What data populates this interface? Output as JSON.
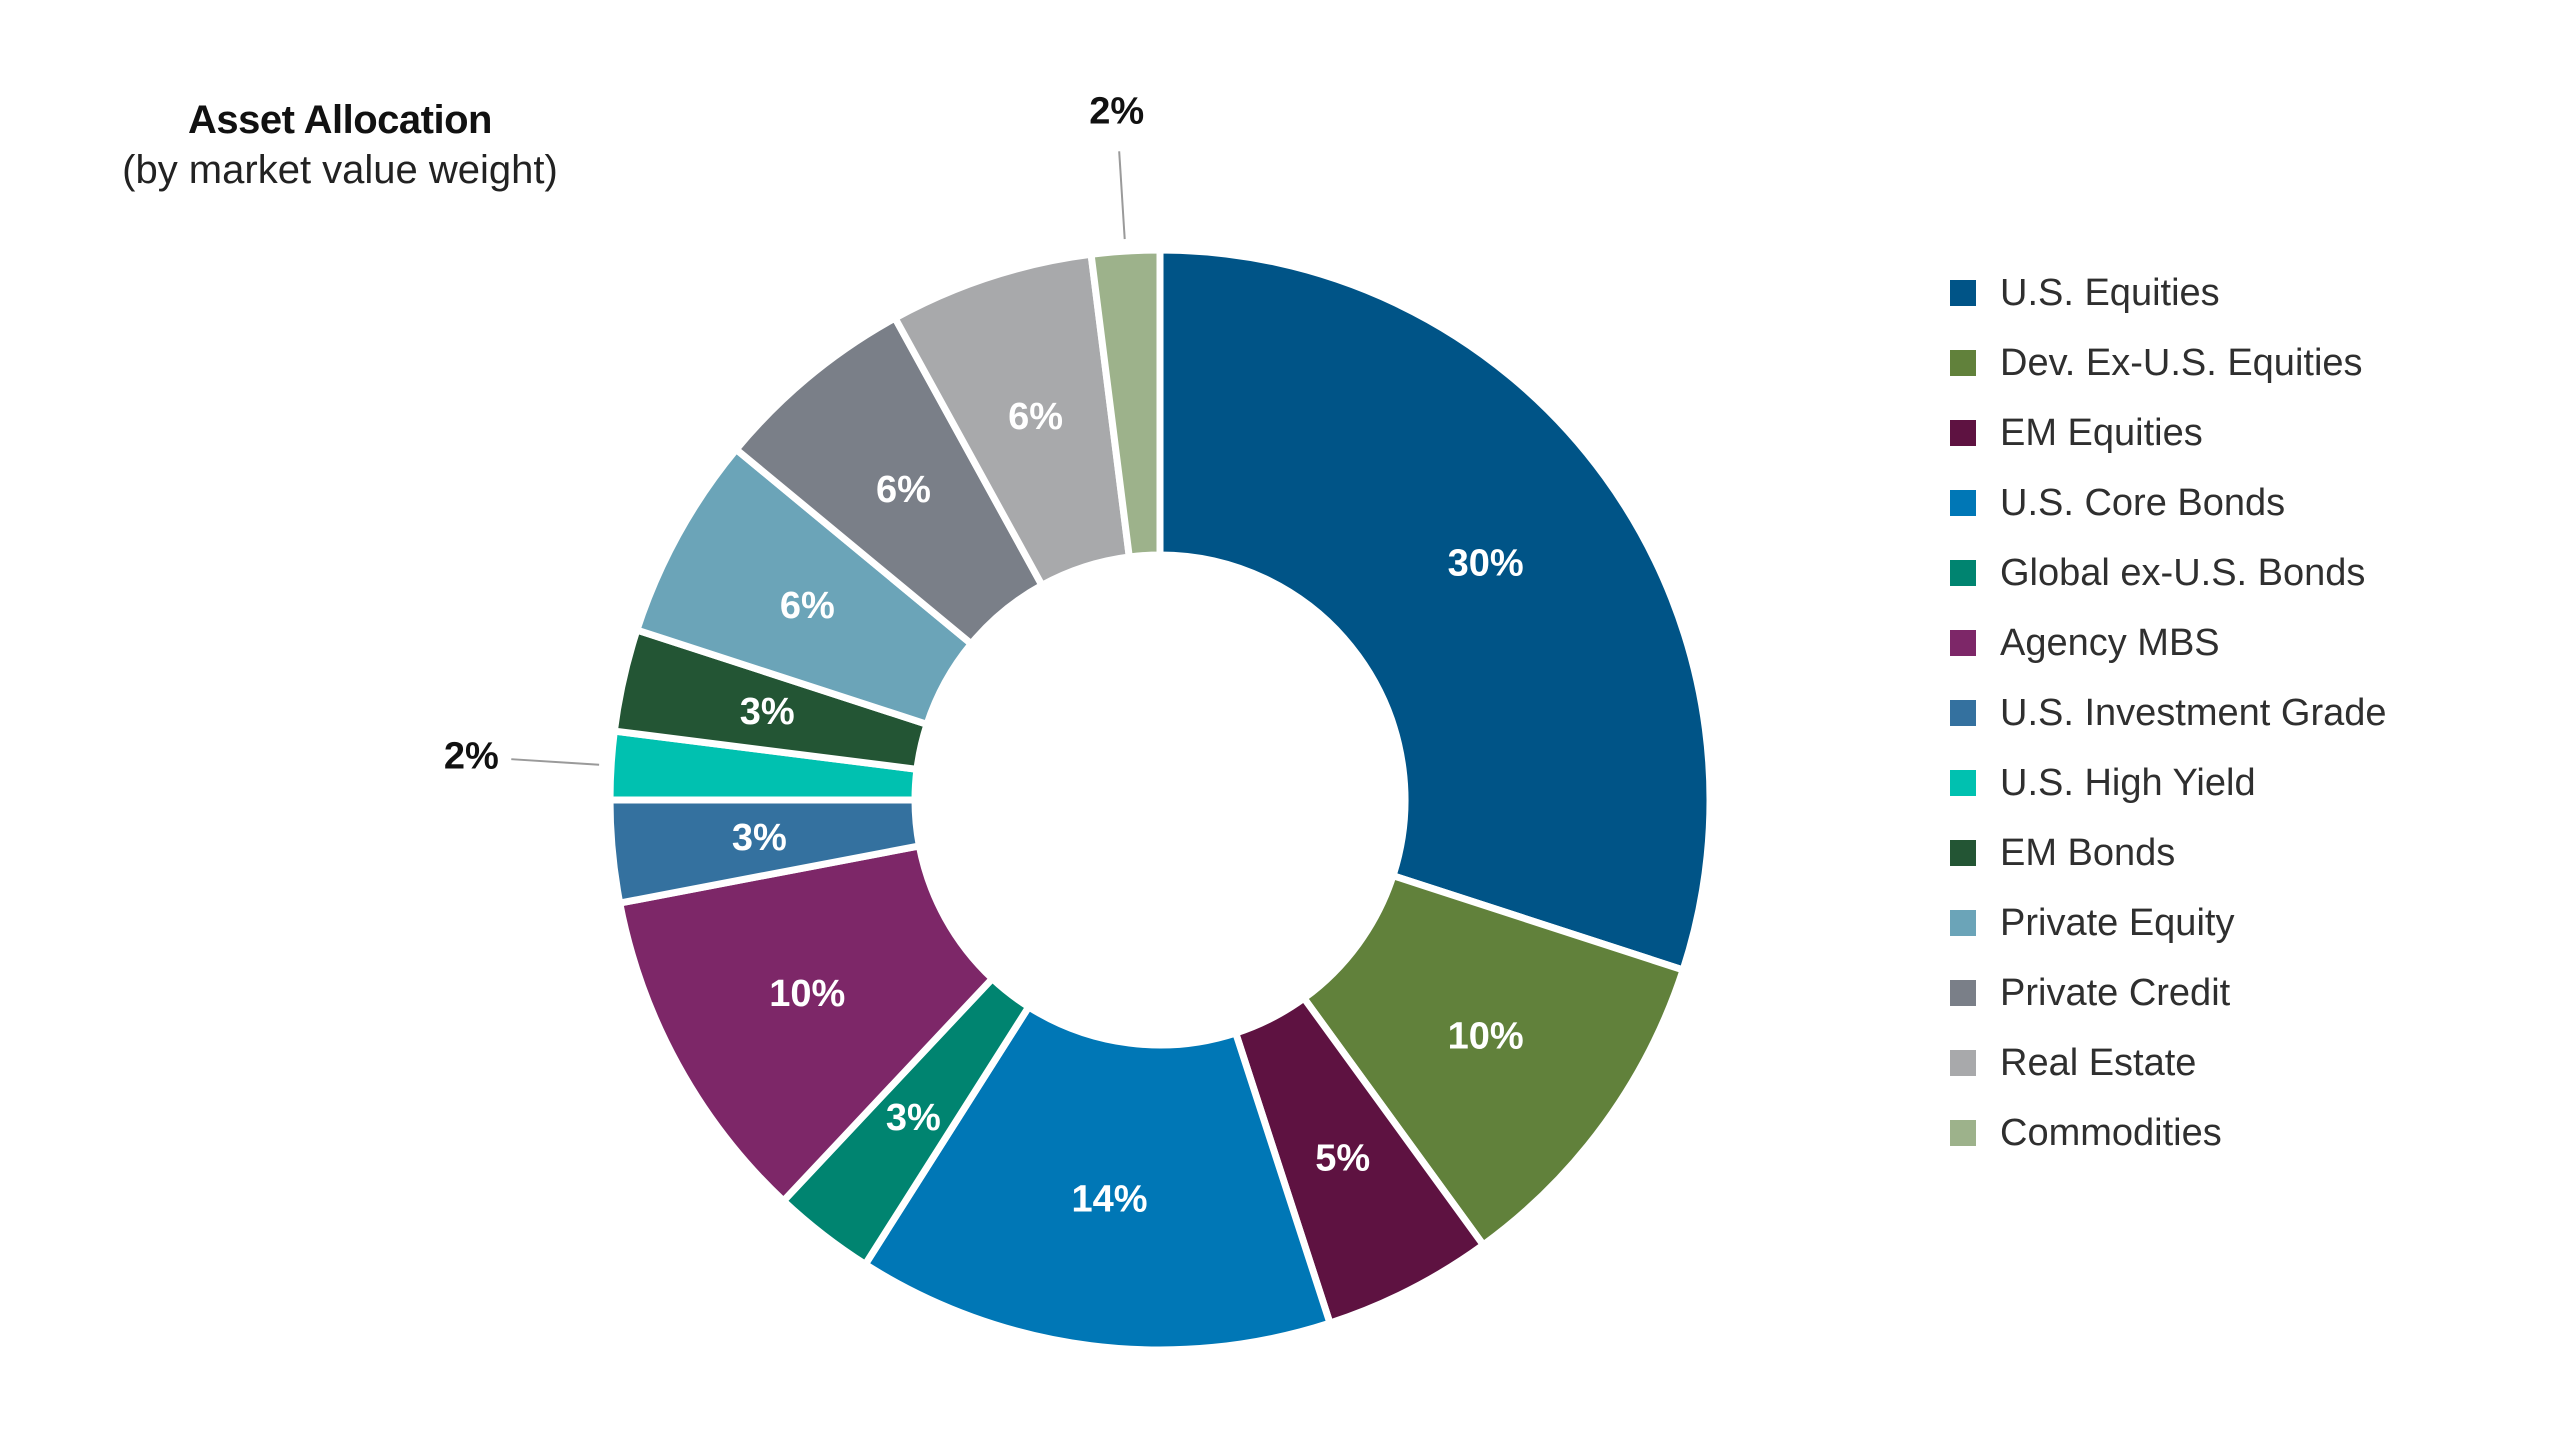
{
  "chart_data": {
    "type": "pie",
    "title": "Asset Allocation",
    "subtitle": "(by market value weight)",
    "categories": [
      "U.S. Equities",
      "Dev. Ex-U.S. Equities",
      "EM Equities",
      "U.S. Core Bonds",
      "Global ex-U.S. Bonds",
      "Agency MBS",
      "U.S. Investment Grade",
      "U.S. High Yield",
      "EM Bonds",
      "Private Equity",
      "Private Credit",
      "Real Estate",
      "Commodities"
    ],
    "values": [
      30,
      10,
      5,
      14,
      3,
      10,
      3,
      2,
      3,
      6,
      6,
      6,
      2
    ],
    "value_labels": [
      "30%",
      "10%",
      "5%",
      "14%",
      "3%",
      "10%",
      "3%",
      "2%",
      "3%",
      "6%",
      "6%",
      "6%",
      "2%"
    ],
    "colors": [
      "#005487",
      "#61813b",
      "#5e1241",
      "#0077b6",
      "#008470",
      "#7d2768",
      "#34719f",
      "#00c1b0",
      "#235534",
      "#6ba4b8",
      "#7a7f88",
      "#a8a9ab",
      "#9db28b"
    ],
    "donut": true,
    "legend_position": "right"
  }
}
